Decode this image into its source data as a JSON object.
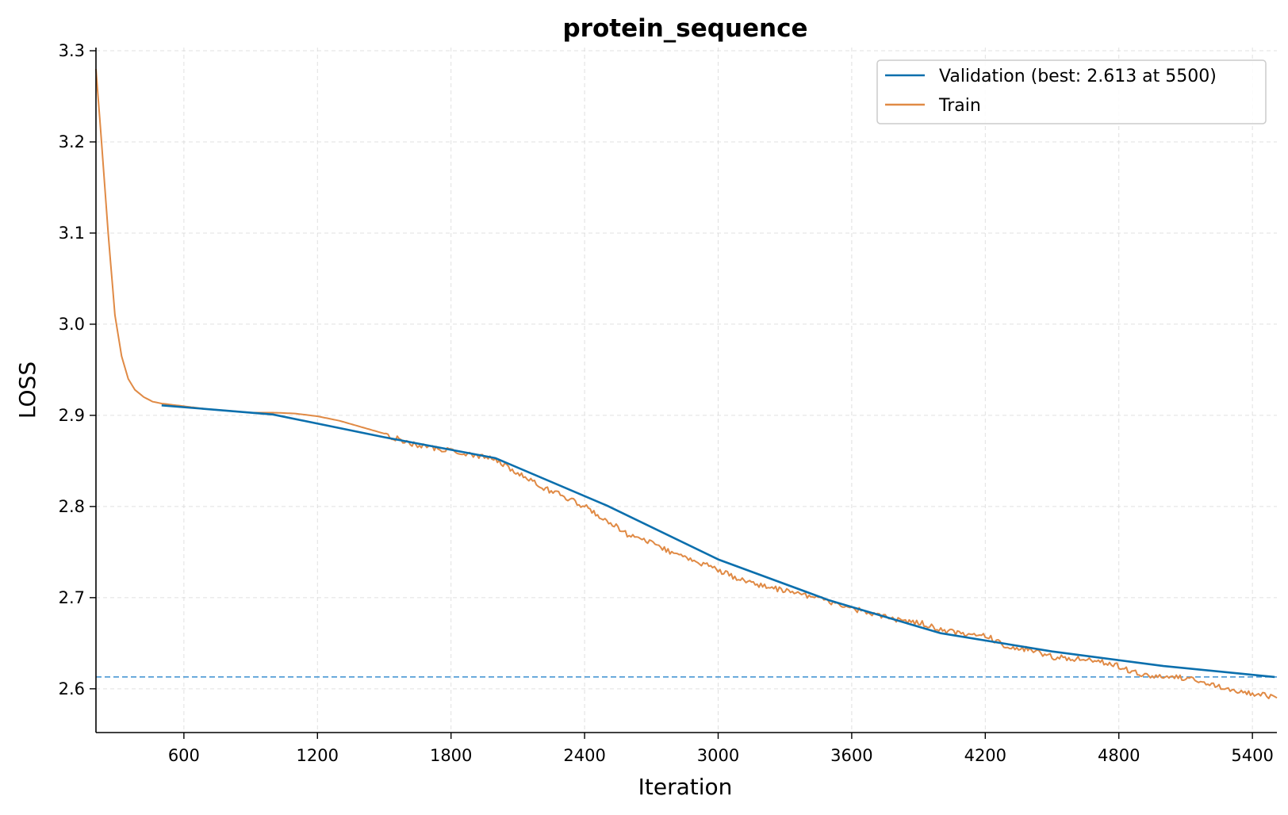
{
  "chart_data": {
    "type": "line",
    "title": "protein_sequence",
    "xlabel": "Iteration",
    "ylabel": "LOSS",
    "xlim": [
      205,
      5510
    ],
    "ylim": [
      2.552,
      3.3035
    ],
    "x_ticks": [
      600,
      1200,
      1800,
      2400,
      3000,
      3600,
      4200,
      4800,
      5400
    ],
    "y_ticks": [
      2.6,
      2.7,
      2.8,
      2.9,
      3.0,
      3.1,
      3.2,
      3.3
    ],
    "x_tick_labels": [
      "600",
      "1200",
      "1800",
      "2400",
      "3000",
      "3600",
      "4200",
      "4800",
      "5400"
    ],
    "y_tick_labels": [
      "2.6",
      "2.7",
      "2.8",
      "2.9",
      "3.0",
      "3.1",
      "3.2",
      "3.3"
    ],
    "grid": true,
    "legend_position": "top-right",
    "reference_line": {
      "orientation": "horizontal",
      "y": 2.613,
      "style": "dashed",
      "color": "#3a8fd0"
    },
    "series": [
      {
        "name": "Validation (best: 2.613 at 5500)",
        "color": "#0b6fad",
        "x": [
          500,
          1000,
          1500,
          2000,
          2500,
          3000,
          3500,
          4000,
          4500,
          5000,
          5500
        ],
        "y": [
          2.911,
          2.901,
          2.876,
          2.853,
          2.801,
          2.742,
          2.697,
          2.661,
          2.641,
          2.625,
          2.613
        ]
      },
      {
        "name": "Train",
        "color": "#e08a45",
        "x": [
          205,
          230,
          260,
          290,
          320,
          350,
          380,
          420,
          460,
          500,
          600,
          700,
          800,
          900,
          1000,
          1100,
          1200,
          1300,
          1400,
          1500,
          1600,
          1700,
          1800,
          1900,
          2000,
          2100,
          2200,
          2300,
          2400,
          2500,
          2600,
          2700,
          2800,
          2900,
          3000,
          3100,
          3200,
          3300,
          3400,
          3500,
          3600,
          3700,
          3800,
          3900,
          4000,
          4100,
          4200,
          4300,
          4400,
          4500,
          4600,
          4700,
          4800,
          4900,
          5000,
          5100,
          5200,
          5300,
          5400,
          5510
        ],
        "y": [
          3.28,
          3.2,
          3.1,
          3.01,
          2.965,
          2.94,
          2.928,
          2.92,
          2.915,
          2.913,
          2.91,
          2.907,
          2.905,
          2.903,
          2.903,
          2.902,
          2.899,
          2.894,
          2.887,
          2.88,
          2.87,
          2.865,
          2.861,
          2.856,
          2.851,
          2.837,
          2.822,
          2.812,
          2.8,
          2.785,
          2.768,
          2.76,
          2.748,
          2.74,
          2.73,
          2.72,
          2.713,
          2.708,
          2.702,
          2.696,
          2.688,
          2.682,
          2.676,
          2.673,
          2.665,
          2.66,
          2.659,
          2.646,
          2.643,
          2.635,
          2.633,
          2.631,
          2.625,
          2.615,
          2.614,
          2.612,
          2.605,
          2.6,
          2.595,
          2.59
        ]
      }
    ]
  }
}
